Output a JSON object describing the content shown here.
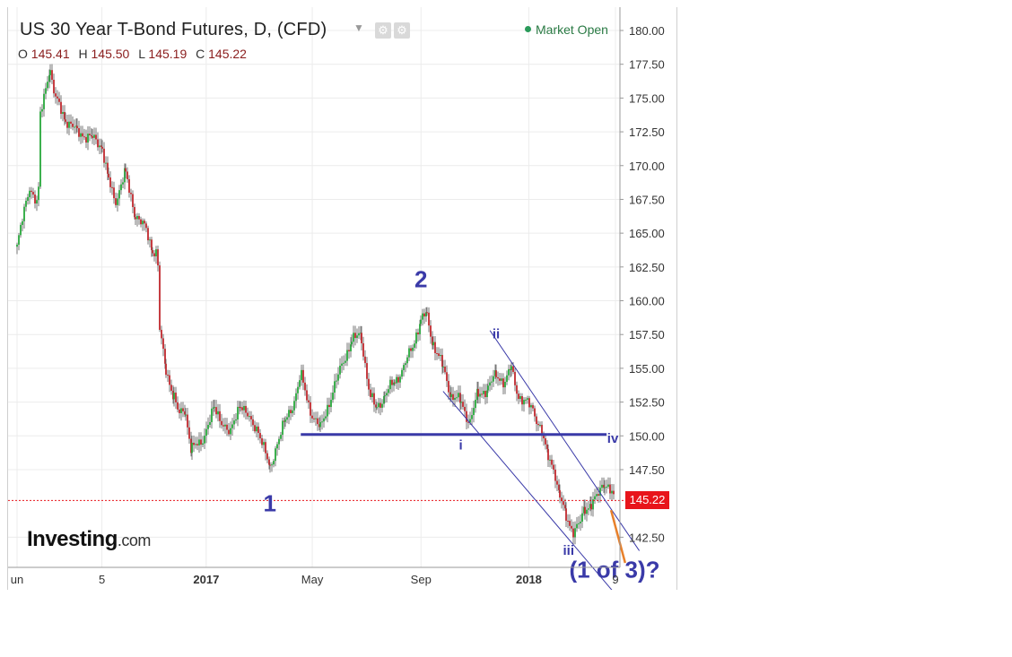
{
  "header": {
    "title": "US 30 Year T-Bond Futures, D, (CFD)",
    "ohlc": [
      {
        "key": "O",
        "value": "145.41"
      },
      {
        "key": "H",
        "value": "145.50"
      },
      {
        "key": "L",
        "value": "145.19"
      },
      {
        "key": "C",
        "value": "145.22"
      }
    ],
    "market_status": "Market Open"
  },
  "last_price_label": "145.22",
  "logo": {
    "main": "Investing",
    "suffix": ".com"
  },
  "colors": {
    "up": "#27a83b",
    "down": "#c0282d",
    "wick": "#555555",
    "wave_label": "#3a3aa8",
    "support_line": "#3a3aa8",
    "channel": "#3a3aa8",
    "price_tag": "#e8151b",
    "projection": "#e8802a"
  },
  "chart_data": {
    "type": "line",
    "title": "US 30 Year T-Bond Futures, D, (CFD)",
    "xlabel": "",
    "ylabel": "",
    "ylim": [
      140.5,
      181.5
    ],
    "y_ticks": [
      180.0,
      177.5,
      175.0,
      172.5,
      170.0,
      167.5,
      165.0,
      162.5,
      160.0,
      157.5,
      155.0,
      152.5,
      150.0,
      147.5,
      142.5
    ],
    "x_ticks": [
      {
        "label": "un",
        "date": "2016-06-01"
      },
      {
        "label": "5",
        "date": "2016-09-05"
      },
      {
        "label": "2017",
        "date": "2017-01-01"
      },
      {
        "label": "May",
        "date": "2017-05-01"
      },
      {
        "label": "Sep",
        "date": "2017-09-01"
      },
      {
        "label": "2018",
        "date": "2018-01-01"
      },
      {
        "label": "9",
        "date": "2018-04-09"
      }
    ],
    "series": [
      {
        "values": [
          {
            "x": "2016-06-01",
            "y": 164.0
          },
          {
            "x": "2016-06-15",
            "y": 168.5
          },
          {
            "x": "2016-06-25",
            "y": 167.0
          },
          {
            "x": "2016-06-27",
            "y": 173.5
          },
          {
            "x": "2016-07-08",
            "y": 177.3
          },
          {
            "x": "2016-07-14",
            "y": 175.0
          },
          {
            "x": "2016-07-25",
            "y": 173.5
          },
          {
            "x": "2016-08-08",
            "y": 172.5
          },
          {
            "x": "2016-08-25",
            "y": 172.0
          },
          {
            "x": "2016-09-05",
            "y": 171.5
          },
          {
            "x": "2016-09-12",
            "y": 169.0
          },
          {
            "x": "2016-09-20",
            "y": 167.3
          },
          {
            "x": "2016-10-01",
            "y": 169.5
          },
          {
            "x": "2016-10-12",
            "y": 166.5
          },
          {
            "x": "2016-10-25",
            "y": 165.2
          },
          {
            "x": "2016-11-01",
            "y": 163.8
          },
          {
            "x": "2016-11-07",
            "y": 163.5
          },
          {
            "x": "2016-11-09",
            "y": 158.0
          },
          {
            "x": "2016-11-16",
            "y": 155.0
          },
          {
            "x": "2016-11-25",
            "y": 153.0
          },
          {
            "x": "2016-12-01",
            "y": 151.5
          },
          {
            "x": "2016-12-08",
            "y": 152.0
          },
          {
            "x": "2016-12-15",
            "y": 149.0
          },
          {
            "x": "2016-12-26",
            "y": 149.5
          },
          {
            "x": "2017-01-10",
            "y": 152.0
          },
          {
            "x": "2017-01-20",
            "y": 151.0
          },
          {
            "x": "2017-01-28",
            "y": 150.0
          },
          {
            "x": "2017-02-08",
            "y": 152.5
          },
          {
            "x": "2017-02-20",
            "y": 151.0
          },
          {
            "x": "2017-03-01",
            "y": 150.5
          },
          {
            "x": "2017-03-14",
            "y": 147.5
          },
          {
            "x": "2017-03-22",
            "y": 149.5
          },
          {
            "x": "2017-03-31",
            "y": 151.0
          },
          {
            "x": "2017-04-10",
            "y": 152.5
          },
          {
            "x": "2017-04-18",
            "y": 154.5
          },
          {
            "x": "2017-04-28",
            "y": 152.0
          },
          {
            "x": "2017-05-10",
            "y": 150.5
          },
          {
            "x": "2017-05-20",
            "y": 152.5
          },
          {
            "x": "2017-06-05",
            "y": 155.5
          },
          {
            "x": "2017-06-14",
            "y": 157.0
          },
          {
            "x": "2017-06-25",
            "y": 157.5
          },
          {
            "x": "2017-07-05",
            "y": 153.0
          },
          {
            "x": "2017-07-12",
            "y": 152.0
          },
          {
            "x": "2017-07-22",
            "y": 153.0
          },
          {
            "x": "2017-08-02",
            "y": 154.0
          },
          {
            "x": "2017-08-12",
            "y": 155.0
          },
          {
            "x": "2017-08-22",
            "y": 156.5
          },
          {
            "x": "2017-08-31",
            "y": 158.5
          },
          {
            "x": "2017-09-07",
            "y": 159.0
          },
          {
            "x": "2017-09-14",
            "y": 157.0
          },
          {
            "x": "2017-09-26",
            "y": 155.0
          },
          {
            "x": "2017-10-05",
            "y": 153.0
          },
          {
            "x": "2017-10-16",
            "y": 152.5
          },
          {
            "x": "2017-10-26",
            "y": 151.0
          },
          {
            "x": "2017-11-04",
            "y": 153.0
          },
          {
            "x": "2017-11-15",
            "y": 153.5
          },
          {
            "x": "2017-11-25",
            "y": 154.5
          },
          {
            "x": "2017-12-05",
            "y": 154.0
          },
          {
            "x": "2017-12-12",
            "y": 155.0
          },
          {
            "x": "2017-12-20",
            "y": 153.0
          },
          {
            "x": "2017-12-28",
            "y": 152.5
          },
          {
            "x": "2018-01-05",
            "y": 152.0
          },
          {
            "x": "2018-01-15",
            "y": 150.5
          },
          {
            "x": "2018-01-22",
            "y": 148.5
          },
          {
            "x": "2018-01-30",
            "y": 147.5
          },
          {
            "x": "2018-02-05",
            "y": 145.5
          },
          {
            "x": "2018-02-12",
            "y": 144.0
          },
          {
            "x": "2018-02-20",
            "y": 143.0
          },
          {
            "x": "2018-02-28",
            "y": 143.5
          },
          {
            "x": "2018-03-05",
            "y": 144.5
          },
          {
            "x": "2018-03-12",
            "y": 145.0
          },
          {
            "x": "2018-03-20",
            "y": 145.5
          },
          {
            "x": "2018-03-27",
            "y": 146.5
          },
          {
            "x": "2018-04-02",
            "y": 146.3
          },
          {
            "x": "2018-04-06",
            "y": 145.5
          },
          {
            "x": "2018-04-09",
            "y": 145.22
          }
        ]
      }
    ],
    "last_price": 145.22,
    "annotations": {
      "waves": [
        {
          "label": "1",
          "x": "2017-03-14",
          "y": 144.4,
          "size": "big"
        },
        {
          "label": "2",
          "x": "2017-09-01",
          "y": 161.0,
          "size": "big"
        },
        {
          "label": "i",
          "x": "2017-10-16",
          "y": 149.0,
          "size": "small"
        },
        {
          "label": "ii",
          "x": "2017-11-25",
          "y": 157.2,
          "size": "small"
        },
        {
          "label": "iii",
          "x": "2018-02-15",
          "y": 141.2,
          "size": "small"
        },
        {
          "label": "iv",
          "x": "2018-04-06",
          "y": 149.5,
          "size": "small"
        },
        {
          "label": "(1 of 3)?",
          "x": "2018-04-08",
          "y": 139.5,
          "size": "big"
        }
      ],
      "support_level": {
        "y": 150.1,
        "from": "2017-04-18",
        "to": "2018-03-30"
      },
      "channel": [
        {
          "from": {
            "x": "2017-09-26",
            "y": 153.3
          },
          "to": {
            "x": "2018-04-10",
            "y": 138.2
          }
        },
        {
          "from": {
            "x": "2017-11-18",
            "y": 157.8
          },
          "to": {
            "x": "2018-05-06",
            "y": 141.5
          }
        }
      ],
      "projection": {
        "from": {
          "x": "2018-04-04",
          "y": 144.5
        },
        "to": {
          "x": "2018-04-20",
          "y": 140.6
        }
      }
    }
  }
}
